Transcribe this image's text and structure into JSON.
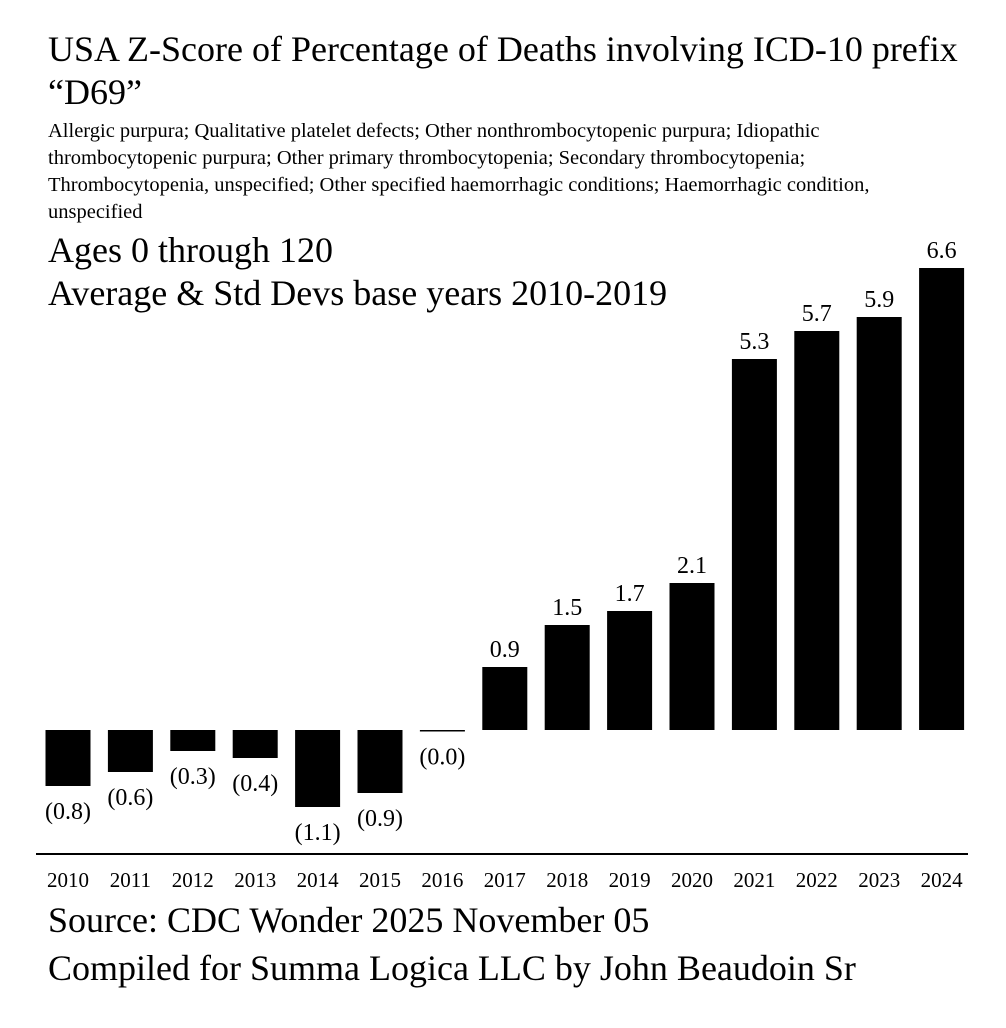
{
  "header": {
    "title": "USA Z-Score of Percentage of Deaths involving ICD-10 prefix “D69”",
    "subtitle": "Allergic purpura; Qualitative platelet defects; Other nonthrombocytopenic purpura; Idiopathic thrombocytopenic purpura; Other primary thrombocytopenia; Secondary thrombocytopenia; Thrombocytopenia, unspecified; Other specified haemorrhagic conditions; Haemorrhagic condition, unspecified",
    "ages": "Ages 0 through 120",
    "base": "Average & Std Devs base years 2010-2019"
  },
  "footer": {
    "source": "Source: CDC Wonder 2025 November 05",
    "compiled": "Compiled for Summa Logica LLC by John Beaudoin Sr"
  },
  "chart_data": {
    "type": "bar",
    "title": "USA Z-Score of Percentage of Deaths involving ICD-10 prefix “D69”",
    "xlabel": "",
    "ylabel": "",
    "categories": [
      "2010",
      "2011",
      "2012",
      "2013",
      "2014",
      "2015",
      "2016",
      "2017",
      "2018",
      "2019",
      "2020",
      "2021",
      "2022",
      "2023",
      "2024"
    ],
    "values": [
      -0.8,
      -0.6,
      -0.3,
      -0.4,
      -1.1,
      -0.9,
      -0.02,
      0.9,
      1.5,
      1.7,
      2.1,
      5.3,
      5.7,
      5.9,
      6.6
    ],
    "labels": [
      "(0.8)",
      "(0.6)",
      "(0.3)",
      "(0.4)",
      "(1.1)",
      "(0.9)",
      "(0.0)",
      "0.9",
      "1.5",
      "1.7",
      "2.1",
      "5.3",
      "5.7",
      "5.9",
      "6.6"
    ],
    "ylim": [
      -1.2,
      6.6
    ],
    "grid": false,
    "bar_color": "#000000"
  }
}
